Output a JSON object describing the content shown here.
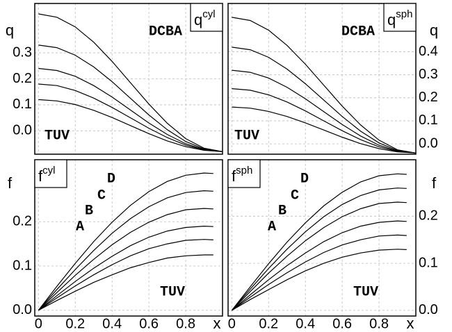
{
  "chart_data": [
    {
      "type": "line",
      "ylabel": "q",
      "panel_label": {
        "base": "q",
        "sup": "cyl"
      },
      "x": [
        0,
        0.1,
        0.2,
        0.3,
        0.4,
        0.5,
        0.6,
        0.7,
        0.8,
        0.9,
        1.0
      ],
      "xlim": [
        -0.02,
        1.0
      ],
      "xticks": [
        0,
        0.2,
        0.4,
        0.6,
        0.8
      ],
      "ylim": [
        -0.09,
        0.49
      ],
      "yticks": [
        {
          "value": 0,
          "label": "0.0"
        },
        0.1,
        0.2,
        0.3
      ],
      "grid": true,
      "series": [
        {
          "color": "#000",
          "values": [
            0.45,
            0.437,
            0.4,
            0.341,
            0.267,
            0.185,
            0.103,
            0.029,
            -0.03,
            -0.067,
            -0.08
          ]
        },
        {
          "color": "#000",
          "values": [
            0.33,
            0.32,
            0.291,
            0.246,
            0.189,
            0.125,
            0.061,
            0.004,
            -0.041,
            -0.07,
            -0.08
          ]
        },
        {
          "color": "#000",
          "values": [
            0.24,
            0.232,
            0.21,
            0.174,
            0.13,
            0.08,
            0.03,
            -0.014,
            -0.05,
            -0.072,
            -0.08
          ]
        },
        {
          "color": "#000",
          "values": [
            0.18,
            0.174,
            0.155,
            0.126,
            0.09,
            0.05,
            0.01,
            -0.026,
            -0.055,
            -0.074,
            -0.08
          ]
        },
        {
          "color": "#000",
          "values": [
            0.12,
            0.115,
            0.101,
            0.079,
            0.051,
            0.02,
            -0.011,
            -0.039,
            -0.061,
            -0.075,
            -0.08
          ]
        }
      ],
      "annotations": [
        "DCBA",
        "TUV"
      ]
    },
    {
      "type": "line",
      "ylabel": "q",
      "panel_label": {
        "base": "q",
        "sup": "sph"
      },
      "x": [
        0,
        0.1,
        0.2,
        0.3,
        0.4,
        0.5,
        0.6,
        0.7,
        0.8,
        0.9,
        1.0
      ],
      "xlim": [
        -0.02,
        1.0
      ],
      "xticks": [
        0,
        0.2,
        0.4,
        0.6,
        0.8
      ],
      "ylim": [
        -0.045,
        0.61
      ],
      "yticks": [
        {
          "value": 0,
          "label": "0.0"
        },
        0.1,
        0.2,
        0.3,
        0.4
      ],
      "grid": true,
      "series": [
        {
          "color": "#000",
          "values": [
            0.55,
            0.536,
            0.494,
            0.428,
            0.346,
            0.255,
            0.164,
            0.082,
            0.016,
            -0.026,
            -0.04
          ]
        },
        {
          "color": "#000",
          "values": [
            0.42,
            0.409,
            0.376,
            0.325,
            0.261,
            0.19,
            0.119,
            0.055,
            0.004,
            -0.029,
            -0.04
          ]
        },
        {
          "color": "#000",
          "values": [
            0.32,
            0.311,
            0.286,
            0.246,
            0.196,
            0.14,
            0.084,
            0.034,
            -0.006,
            -0.031,
            -0.04
          ]
        },
        {
          "color": "#000",
          "values": [
            0.24,
            0.233,
            0.213,
            0.182,
            0.143,
            0.1,
            0.057,
            0.018,
            -0.013,
            -0.033,
            -0.04
          ]
        },
        {
          "color": "#000",
          "values": [
            0.16,
            0.155,
            0.141,
            0.119,
            0.091,
            0.06,
            0.029,
            0.001,
            -0.021,
            -0.035,
            -0.04
          ]
        }
      ],
      "annotations": [
        "DCBA",
        "TUV"
      ]
    },
    {
      "type": "line",
      "ylabel": "f",
      "xlabel": "x",
      "panel_label": {
        "base": "f",
        "sup": "cyl"
      },
      "x": [
        0,
        0.1,
        0.2,
        0.3,
        0.4,
        0.5,
        0.6,
        0.7,
        0.8,
        0.9,
        0.95
      ],
      "xlim": [
        -0.02,
        1.0
      ],
      "xticks": [
        0,
        0.2,
        0.4,
        0.6,
        0.8
      ],
      "ylim": [
        -0.013,
        0.34
      ],
      "yticks": [
        {
          "value": 0,
          "label": "0.0"
        },
        0.1,
        0.2
      ],
      "grid": true,
      "series": [
        {
          "color": "#000",
          "values": [
            0,
            0.054,
            0.106,
            0.155,
            0.199,
            0.237,
            0.268,
            0.291,
            0.305,
            0.31,
            0.309
          ]
        },
        {
          "color": "#000",
          "values": [
            0,
            0.047,
            0.092,
            0.135,
            0.174,
            0.207,
            0.234,
            0.254,
            0.266,
            0.27,
            0.269
          ]
        },
        {
          "color": "#000",
          "values": [
            0,
            0.04,
            0.079,
            0.115,
            0.148,
            0.176,
            0.199,
            0.216,
            0.227,
            0.23,
            0.229
          ]
        },
        {
          "color": "#000",
          "values": [
            0,
            0.033,
            0.065,
            0.095,
            0.122,
            0.146,
            0.165,
            0.179,
            0.187,
            0.19,
            0.189
          ]
        },
        {
          "color": "#000",
          "values": [
            0,
            0.028,
            0.055,
            0.08,
            0.103,
            0.123,
            0.139,
            0.15,
            0.158,
            0.16,
            0.159
          ]
        },
        {
          "color": "#000",
          "values": [
            0,
            0.022,
            0.043,
            0.063,
            0.08,
            0.096,
            0.108,
            0.118,
            0.123,
            0.125,
            0.125
          ]
        }
      ],
      "annotations": [
        "A",
        "B",
        "C",
        "D",
        "TUV"
      ]
    },
    {
      "type": "line",
      "ylabel": "f",
      "xlabel": "x",
      "panel_label": {
        "base": "f",
        "sup": "sph"
      },
      "x": [
        0,
        0.1,
        0.2,
        0.3,
        0.4,
        0.5,
        0.6,
        0.7,
        0.8,
        0.9,
        0.95
      ],
      "xlim": [
        -0.02,
        1.0
      ],
      "xticks": [
        0,
        0.2,
        0.4,
        0.6,
        0.8
      ],
      "ylim": [
        -0.012,
        0.32
      ],
      "yticks": [
        {
          "value": 0,
          "label": "0.0"
        },
        0.1,
        0.2
      ],
      "grid": true,
      "series": [
        {
          "color": "#000",
          "values": [
            0,
            0.05,
            0.099,
            0.145,
            0.186,
            0.222,
            0.251,
            0.273,
            0.286,
            0.29,
            0.289
          ]
        },
        {
          "color": "#000",
          "values": [
            0,
            0.045,
            0.089,
            0.13,
            0.167,
            0.199,
            0.225,
            0.244,
            0.256,
            0.26,
            0.259
          ]
        },
        {
          "color": "#000",
          "values": [
            0,
            0.04,
            0.079,
            0.115,
            0.148,
            0.176,
            0.199,
            0.216,
            0.227,
            0.23,
            0.229
          ]
        },
        {
          "color": "#000",
          "values": [
            0,
            0.033,
            0.065,
            0.095,
            0.122,
            0.146,
            0.165,
            0.179,
            0.187,
            0.19,
            0.189
          ]
        },
        {
          "color": "#000",
          "values": [
            0,
            0.028,
            0.055,
            0.08,
            0.103,
            0.123,
            0.139,
            0.15,
            0.158,
            0.16,
            0.159
          ]
        },
        {
          "color": "#000",
          "values": [
            0,
            0.023,
            0.044,
            0.065,
            0.084,
            0.1,
            0.113,
            0.122,
            0.128,
            0.13,
            0.129
          ]
        }
      ],
      "annotations": [
        "A",
        "B",
        "C",
        "D",
        "TUV"
      ]
    }
  ]
}
